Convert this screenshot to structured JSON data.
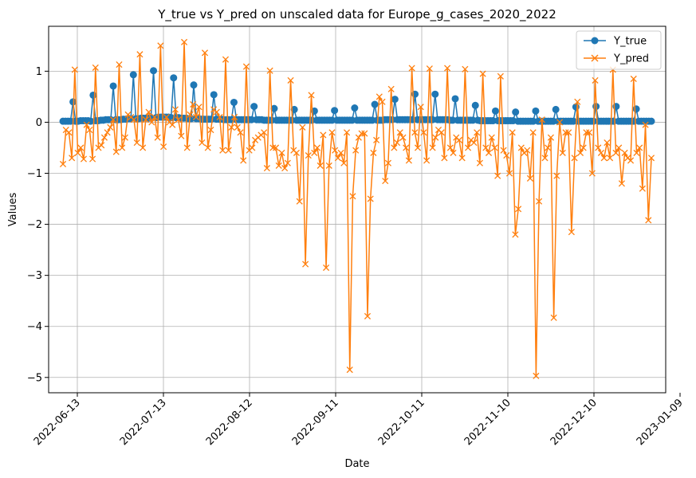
{
  "chart_data": {
    "type": "line",
    "title": "Y_true vs Y_pred on unscaled data for Europe_g_cases_2020_2022",
    "xlabel": "Date",
    "ylabel": "Values",
    "x_start": "2022-06-08",
    "x_end": "2022-12-30",
    "xlim": [
      "2022-06-03",
      "2023-01-04"
    ],
    "ylim": [
      -5.3,
      1.88
    ],
    "grid": true,
    "legend_position": "top-right",
    "x_ticks": [
      "2022-06-13",
      "2022-07-13",
      "2022-08-12",
      "2022-09-11",
      "2022-10-11",
      "2022-11-10",
      "2022-12-10",
      "2023-01-09"
    ],
    "y_ticks": [
      1,
      0,
      -1,
      -2,
      -3,
      -4,
      -5
    ],
    "series": [
      {
        "name": "Y_true",
        "color": "#1f77b4",
        "marker": "circle",
        "values": [
          0.02,
          0.02,
          0.02,
          0.02,
          0.4,
          0.02,
          0.02,
          0.03,
          0.03,
          0.03,
          0.03,
          0.02,
          0.53,
          0.03,
          0.03,
          0.04,
          0.04,
          0.05,
          0.05,
          0.05,
          0.71,
          0.05,
          0.05,
          0.05,
          0.06,
          0.06,
          0.07,
          0.07,
          0.93,
          0.07,
          0.07,
          0.08,
          0.08,
          0.08,
          0.08,
          0.08,
          1.01,
          0.09,
          0.1,
          0.1,
          0.1,
          0.1,
          0.1,
          0.09,
          0.87,
          0.09,
          0.09,
          0.08,
          0.08,
          0.08,
          0.07,
          0.07,
          0.73,
          0.07,
          0.07,
          0.06,
          0.06,
          0.06,
          0.06,
          0.06,
          0.54,
          0.06,
          0.06,
          0.06,
          0.05,
          0.05,
          0.05,
          0.05,
          0.39,
          0.05,
          0.05,
          0.05,
          0.05,
          0.05,
          0.05,
          0.05,
          0.31,
          0.05,
          0.05,
          0.05,
          0.04,
          0.04,
          0.04,
          0.04,
          0.27,
          0.04,
          0.04,
          0.04,
          0.04,
          0.04,
          0.04,
          0.04,
          0.25,
          0.04,
          0.04,
          0.04,
          0.04,
          0.04,
          0.04,
          0.04,
          0.22,
          0.04,
          0.04,
          0.04,
          0.04,
          0.04,
          0.04,
          0.04,
          0.23,
          0.04,
          0.04,
          0.04,
          0.04,
          0.04,
          0.04,
          0.04,
          0.28,
          0.04,
          0.04,
          0.04,
          0.04,
          0.04,
          0.04,
          0.04,
          0.35,
          0.04,
          0.04,
          0.04,
          0.05,
          0.05,
          0.05,
          0.05,
          0.45,
          0.05,
          0.05,
          0.05,
          0.05,
          0.05,
          0.05,
          0.05,
          0.55,
          0.05,
          0.05,
          0.05,
          0.05,
          0.05,
          0.05,
          0.05,
          0.55,
          0.05,
          0.05,
          0.05,
          0.05,
          0.05,
          0.04,
          0.04,
          0.46,
          0.04,
          0.04,
          0.04,
          0.04,
          0.04,
          0.04,
          0.04,
          0.33,
          0.04,
          0.03,
          0.03,
          0.03,
          0.03,
          0.03,
          0.03,
          0.22,
          0.03,
          0.03,
          0.03,
          0.03,
          0.03,
          0.03,
          0.03,
          0.2,
          0.02,
          0.02,
          0.02,
          0.02,
          0.02,
          0.02,
          0.02,
          0.22,
          0.02,
          0.02,
          0.02,
          0.02,
          0.02,
          0.02,
          0.02,
          0.25,
          0.02,
          0.02,
          0.02,
          0.02,
          0.02,
          0.02,
          0.02,
          0.3,
          0.02,
          0.02,
          0.02,
          0.02,
          0.02,
          0.02,
          0.02,
          0.31,
          0.02,
          0.02,
          0.02,
          0.02,
          0.02,
          0.02,
          0.02,
          0.31,
          0.02,
          0.02,
          0.02,
          0.02,
          0.02,
          0.02,
          0.02,
          0.26,
          0.02,
          0.02,
          0.02,
          0.02,
          0.02,
          0.02
        ]
      },
      {
        "name": "Y_pred",
        "color": "#ff7f0e",
        "marker": "x",
        "values": [
          -0.82,
          -0.15,
          -0.2,
          -0.7,
          1.03,
          -0.6,
          -0.5,
          -0.72,
          -0.05,
          -0.15,
          -0.72,
          1.07,
          -0.5,
          -0.45,
          -0.3,
          -0.2,
          -0.1,
          0.05,
          -0.58,
          1.13,
          -0.5,
          -0.3,
          0.15,
          0.1,
          0.05,
          -0.4,
          1.33,
          -0.5,
          0.05,
          0.2,
          0.0,
          0.1,
          -0.3,
          1.5,
          -0.48,
          0.1,
          0.0,
          -0.05,
          0.25,
          0.05,
          -0.27,
          1.57,
          -0.5,
          0.15,
          0.35,
          0.1,
          0.3,
          -0.4,
          1.36,
          -0.5,
          -0.15,
          0.25,
          0.2,
          0.1,
          -0.55,
          1.23,
          -0.55,
          -0.1,
          0.1,
          -0.1,
          -0.2,
          -0.75,
          1.09,
          -0.55,
          -0.5,
          -0.35,
          -0.3,
          -0.25,
          -0.2,
          -0.9,
          1.01,
          -0.5,
          -0.5,
          -0.85,
          -0.6,
          -0.9,
          -0.8,
          0.82,
          -0.55,
          -0.6,
          -1.55,
          -0.1,
          -2.78,
          -0.65,
          0.53,
          -0.6,
          -0.5,
          -0.85,
          -0.25,
          -2.85,
          -0.85,
          -0.2,
          -0.55,
          -0.7,
          -0.6,
          -0.8,
          -0.2,
          -4.85,
          -1.45,
          -0.55,
          -0.3,
          -0.22,
          -0.22,
          -3.8,
          -1.5,
          -0.6,
          -0.35,
          0.5,
          0.4,
          -1.15,
          -0.8,
          0.65,
          -0.5,
          -0.4,
          -0.2,
          -0.3,
          -0.5,
          -0.75,
          1.06,
          -0.2,
          -0.5,
          0.3,
          -0.2,
          -0.75,
          1.05,
          -0.5,
          -0.3,
          -0.15,
          -0.2,
          -0.7,
          1.06,
          -0.5,
          -0.6,
          -0.3,
          -0.35,
          -0.7,
          1.04,
          -0.5,
          -0.35,
          -0.4,
          -0.2,
          -0.8,
          0.95,
          -0.5,
          -0.6,
          -0.3,
          -0.5,
          -1.05,
          0.9,
          -0.55,
          -0.65,
          -1.0,
          -0.2,
          -2.2,
          -1.7,
          -0.5,
          -0.6,
          -0.55,
          -1.1,
          -0.2,
          -4.97,
          -1.55,
          0.05,
          -0.7,
          -0.5,
          -0.3,
          -3.83,
          -1.05,
          0.0,
          -0.6,
          -0.2,
          -0.2,
          -2.15,
          -0.7,
          0.4,
          -0.6,
          -0.5,
          -0.2,
          -0.2,
          -1.0,
          0.82,
          -0.5,
          -0.6,
          -0.7,
          -0.4,
          -0.7,
          1.03,
          -0.6,
          -0.5,
          -1.2,
          -0.6,
          -0.7,
          -0.75,
          0.85,
          -0.6,
          -0.5,
          -1.3,
          -0.05,
          -1.92,
          -0.7
        ]
      }
    ]
  }
}
